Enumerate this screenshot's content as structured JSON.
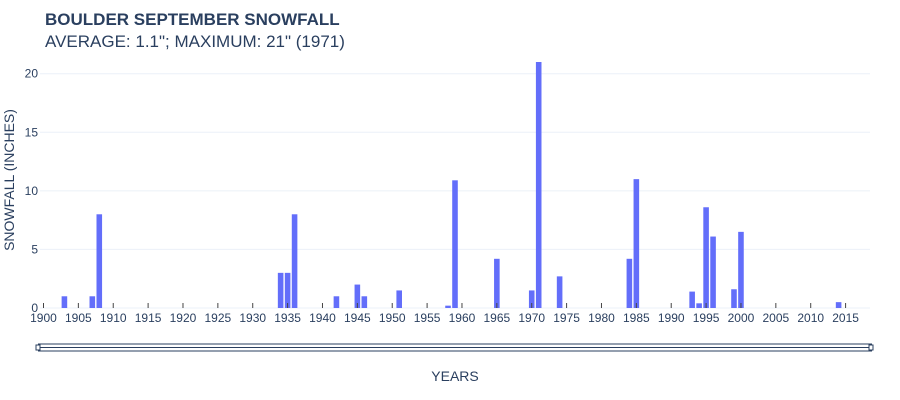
{
  "chart_data": {
    "type": "bar",
    "title": "BOULDER SEPTEMBER SNOWFALL",
    "subtitle": "AVERAGE: 1.1\"; MAXIMUM: 21\" (1971)",
    "xlabel": "YEARS",
    "ylabel": "SNOWFALL (INCHES)",
    "xlim": [
      1899.5,
      2018.5
    ],
    "ylim": [
      0,
      21
    ],
    "x_ticks": [
      1900,
      1905,
      1910,
      1915,
      1920,
      1925,
      1930,
      1935,
      1940,
      1945,
      1950,
      1955,
      1960,
      1965,
      1970,
      1975,
      1980,
      1985,
      1990,
      1995,
      2000,
      2005,
      2010,
      2015
    ],
    "y_ticks": [
      0,
      5,
      10,
      15,
      20
    ],
    "grid": true,
    "bar_color": "#636efa",
    "has_rangeslider": true,
    "x": [
      1903,
      1907,
      1908,
      1934,
      1935,
      1936,
      1942,
      1945,
      1946,
      1951,
      1958,
      1959,
      1965,
      1970,
      1971,
      1974,
      1984,
      1985,
      1993,
      1994,
      1995,
      1996,
      1999,
      2000,
      2014
    ],
    "values": [
      1,
      1,
      8,
      3,
      3,
      8,
      1,
      2,
      1,
      1.5,
      0.2,
      10.9,
      4.2,
      1.5,
      21,
      2.7,
      4.2,
      11,
      1.4,
      0.4,
      8.6,
      6.1,
      1.6,
      6.5,
      0.5
    ]
  }
}
